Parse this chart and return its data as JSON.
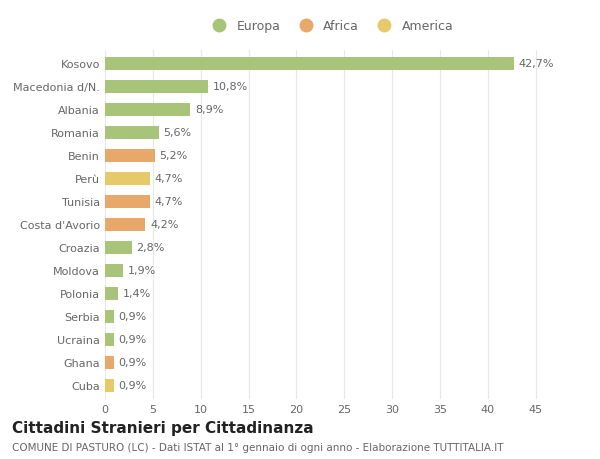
{
  "categories": [
    "Cuba",
    "Ghana",
    "Ucraina",
    "Serbia",
    "Polonia",
    "Moldova",
    "Croazia",
    "Costa d'Avorio",
    "Tunisia",
    "Perù",
    "Benin",
    "Romania",
    "Albania",
    "Macedonia d/N.",
    "Kosovo"
  ],
  "values": [
    0.9,
    0.9,
    0.9,
    0.9,
    1.4,
    1.9,
    2.8,
    4.2,
    4.7,
    4.7,
    5.2,
    5.6,
    8.9,
    10.8,
    42.7
  ],
  "colors": [
    "#E8C96A",
    "#E8A86A",
    "#A8C478",
    "#A8C478",
    "#A8C478",
    "#A8C478",
    "#A8C478",
    "#E8A86A",
    "#E8A86A",
    "#E8C96A",
    "#E8A86A",
    "#A8C478",
    "#A8C478",
    "#A8C478",
    "#A8C478"
  ],
  "labels": [
    "0,9%",
    "0,9%",
    "0,9%",
    "0,9%",
    "1,4%",
    "1,9%",
    "2,8%",
    "4,2%",
    "4,7%",
    "4,7%",
    "5,2%",
    "5,6%",
    "8,9%",
    "10,8%",
    "42,7%"
  ],
  "legend": [
    {
      "label": "Europa",
      "color": "#A8C478"
    },
    {
      "label": "Africa",
      "color": "#E8A86A"
    },
    {
      "label": "America",
      "color": "#E8C96A"
    }
  ],
  "xlim": [
    0,
    47
  ],
  "xticks": [
    0,
    5,
    10,
    15,
    20,
    25,
    30,
    35,
    40,
    45
  ],
  "title": "Cittadini Stranieri per Cittadinanza",
  "subtitle": "COMUNE DI PASTURO (LC) - Dati ISTAT al 1° gennaio di ogni anno - Elaborazione TUTTITALIA.IT",
  "bg_color": "#ffffff",
  "grid_color": "#e8e8e8",
  "bar_height": 0.55,
  "label_fontsize": 8.0,
  "tick_fontsize": 8.0,
  "title_fontsize": 11,
  "subtitle_fontsize": 7.5
}
